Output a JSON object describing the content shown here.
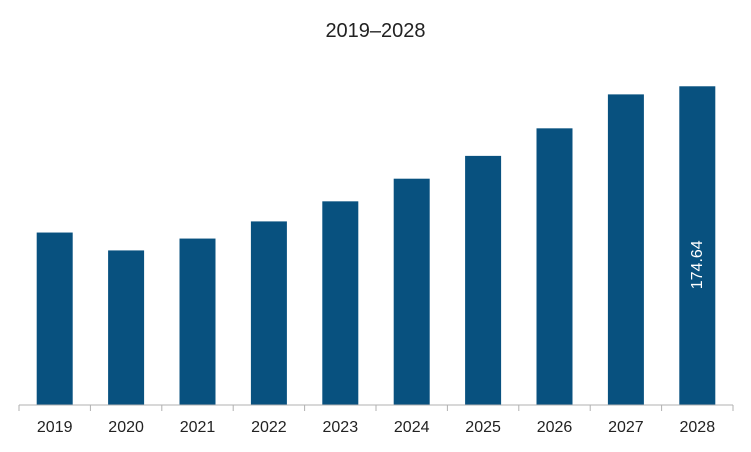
{
  "chart_data": {
    "type": "bar",
    "title": "2019–2028",
    "xlabel": "",
    "ylabel": "",
    "categories": [
      "2019",
      "2020",
      "2021",
      "2022",
      "2023",
      "2024",
      "2025",
      "2026",
      "2027",
      "2028"
    ],
    "values": [
      94.5,
      84.7,
      91.2,
      100.6,
      111.6,
      124.0,
      136.5,
      151.6,
      170.2,
      174.64
    ],
    "data_labels": [
      "",
      "",
      "",
      "",
      "",
      "",
      "",
      "",
      "",
      "174.64"
    ],
    "ylim": [
      0,
      200
    ],
    "grid": false,
    "legend": "none",
    "bar_color": "#08517f"
  }
}
